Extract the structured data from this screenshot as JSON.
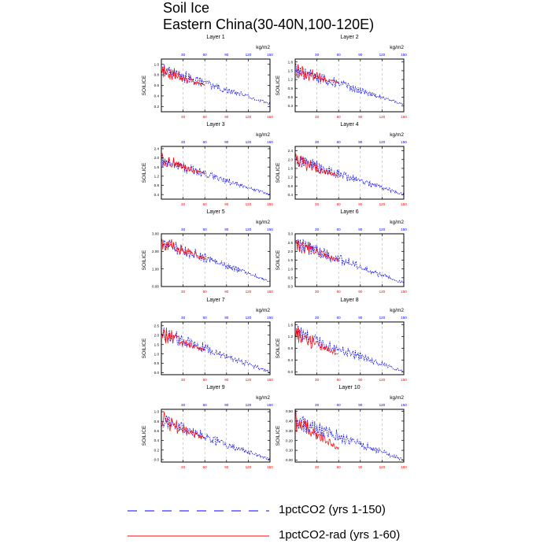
{
  "figure": {
    "title": "Soil Ice",
    "subtitle": "Eastern China(30-40N,100-120E)"
  },
  "legend": [
    {
      "label": "1pctCO2 (yrs 1-150)",
      "color": "#0000ff",
      "style": "dashed"
    },
    {
      "label": "1pctCO2-rad (yrs 1-60)",
      "color": "#ff0000",
      "style": "solid"
    }
  ],
  "chart_data": [
    {
      "type": "line",
      "title": "Layer 1",
      "ylabel": "SOILICE",
      "units": "kg/m2",
      "xlim": [
        0,
        150
      ],
      "ylim": [
        0.1,
        1.1
      ],
      "yticks": [
        0.2,
        0.4,
        0.6,
        0.8,
        1.0
      ],
      "yticklabels": [
        "0.2",
        "0.4",
        "0.6",
        "0.8",
        "1.0"
      ],
      "xticks": [
        30,
        60,
        90,
        120,
        150
      ],
      "grid": "vertical dashed at x ticks",
      "series": [
        {
          "name": "1pctCO2 (yrs 1-150)",
          "color": "#0000ff",
          "x_range": [
            1,
            150
          ],
          "y_start": 0.9,
          "y_end": 0.25,
          "amplitude": 0.12
        },
        {
          "name": "1pctCO2-rad (yrs 1-60)",
          "color": "#ff0000",
          "x_range": [
            1,
            60
          ],
          "y_start": 0.9,
          "y_end": 0.6,
          "amplitude": 0.15
        }
      ]
    },
    {
      "type": "line",
      "title": "Layer 2",
      "ylabel": "SOILICE",
      "units": "kg/m2",
      "xlim": [
        0,
        150
      ],
      "ylim": [
        0.1,
        1.9
      ],
      "yticks": [
        0.3,
        0.6,
        0.9,
        1.2,
        1.5,
        1.8
      ],
      "yticklabels": [
        "0.3",
        "0.6",
        "0.9",
        "1.2",
        "1.5",
        "1.8"
      ],
      "xticks": [
        30,
        60,
        90,
        120,
        150
      ],
      "grid": "vertical dashed at x ticks",
      "series": [
        {
          "name": "1pctCO2 (yrs 1-150)",
          "color": "#0000ff",
          "x_range": [
            1,
            150
          ],
          "y_start": 1.5,
          "y_end": 0.35,
          "amplitude": 0.2
        },
        {
          "name": "1pctCO2-rad (yrs 1-60)",
          "color": "#ff0000",
          "x_range": [
            1,
            60
          ],
          "y_start": 1.5,
          "y_end": 1.1,
          "amplitude": 0.25
        }
      ]
    },
    {
      "type": "line",
      "title": "Layer 3",
      "ylabel": "SOILICE",
      "units": "kg/m2",
      "xlim": [
        0,
        150
      ],
      "ylim": [
        0.2,
        2.5
      ],
      "yticks": [
        0.4,
        0.8,
        1.2,
        1.6,
        2.0,
        2.4
      ],
      "yticklabels": [
        "0.4",
        "0.8",
        "1.2",
        "1.6",
        "2.0",
        "2.4"
      ],
      "xticks": [
        30,
        60,
        90,
        120,
        150
      ],
      "grid": "vertical dashed at x ticks",
      "series": [
        {
          "name": "1pctCO2 (yrs 1-150)",
          "color": "#0000ff",
          "x_range": [
            1,
            150
          ],
          "y_start": 1.9,
          "y_end": 0.4,
          "amplitude": 0.25
        },
        {
          "name": "1pctCO2-rad (yrs 1-60)",
          "color": "#ff0000",
          "x_range": [
            1,
            60
          ],
          "y_start": 1.9,
          "y_end": 1.3,
          "amplitude": 0.3
        }
      ]
    },
    {
      "type": "line",
      "title": "Layer 4",
      "ylabel": "SOILICE",
      "units": "kg/m2",
      "xlim": [
        0,
        150
      ],
      "ylim": [
        0.2,
        2.6
      ],
      "yticks": [
        0.4,
        0.8,
        1.2,
        1.6,
        2.0,
        2.4
      ],
      "yticklabels": [
        "0.4",
        "0.8",
        "1.2",
        "1.6",
        "2.0",
        "2.4"
      ],
      "xticks": [
        30,
        60,
        90,
        120,
        150
      ],
      "grid": "vertical dashed at x ticks",
      "series": [
        {
          "name": "1pctCO2 (yrs 1-150)",
          "color": "#0000ff",
          "x_range": [
            1,
            150
          ],
          "y_start": 2.0,
          "y_end": 0.4,
          "amplitude": 0.3
        },
        {
          "name": "1pctCO2-rad (yrs 1-60)",
          "color": "#ff0000",
          "x_range": [
            1,
            60
          ],
          "y_start": 2.0,
          "y_end": 1.2,
          "amplitude": 0.35
        }
      ]
    },
    {
      "type": "line",
      "title": "Layer 5",
      "ylabel": "SOILICE",
      "units": "kg/m2",
      "xlim": [
        0,
        150
      ],
      "ylim": [
        0,
        3.0
      ],
      "yticks": [
        0,
        1.0,
        2.0,
        3.0
      ],
      "yticklabels": [
        "0.00",
        "1.00",
        "2.00",
        "3.00"
      ],
      "xticks": [
        30,
        60,
        90,
        120,
        150
      ],
      "grid": "vertical dashed at x ticks",
      "series": [
        {
          "name": "1pctCO2 (yrs 1-150)",
          "color": "#0000ff",
          "x_range": [
            1,
            150
          ],
          "y_start": 2.5,
          "y_end": 0.3,
          "amplitude": 0.35
        },
        {
          "name": "1pctCO2-rad (yrs 1-60)",
          "color": "#ff0000",
          "x_range": [
            1,
            60
          ],
          "y_start": 2.5,
          "y_end": 1.6,
          "amplitude": 0.4
        }
      ]
    },
    {
      "type": "line",
      "title": "Layer 6",
      "ylabel": "SOILICE",
      "units": "kg/m2",
      "xlim": [
        0,
        150
      ],
      "ylim": [
        0,
        3.0
      ],
      "yticks": [
        0,
        0.5,
        1.0,
        1.5,
        2.0,
        2.5,
        3.0
      ],
      "yticklabels": [
        "0.0",
        "0.5",
        "1.0",
        "1.5",
        "2.0",
        "2.5",
        "3.0"
      ],
      "xticks": [
        30,
        60,
        90,
        120,
        150
      ],
      "grid": "vertical dashed at x ticks",
      "series": [
        {
          "name": "1pctCO2 (yrs 1-150)",
          "color": "#0000ff",
          "x_range": [
            1,
            150
          ],
          "y_start": 2.5,
          "y_end": 0.2,
          "amplitude": 0.4
        },
        {
          "name": "1pctCO2-rad (yrs 1-60)",
          "color": "#ff0000",
          "x_range": [
            1,
            60
          ],
          "y_start": 2.5,
          "y_end": 1.5,
          "amplitude": 0.45
        }
      ]
    },
    {
      "type": "line",
      "title": "Layer 7",
      "ylabel": "SOILICE",
      "units": "kg/m2",
      "xlim": [
        0,
        150
      ],
      "ylim": [
        -0.1,
        2.7
      ],
      "yticks": [
        0,
        0.5,
        1.0,
        1.5,
        2.0,
        2.5
      ],
      "yticklabels": [
        "0.0",
        "0.5",
        "1.0",
        "1.5",
        "2.0",
        "2.5"
      ],
      "xticks": [
        30,
        60,
        90,
        120,
        150
      ],
      "grid": "vertical dashed at x ticks",
      "series": [
        {
          "name": "1pctCO2 (yrs 1-150)",
          "color": "#0000ff",
          "x_range": [
            1,
            150
          ],
          "y_start": 2.1,
          "y_end": 0.05,
          "amplitude": 0.35
        },
        {
          "name": "1pctCO2-rad (yrs 1-60)",
          "color": "#ff0000",
          "x_range": [
            1,
            60
          ],
          "y_start": 2.1,
          "y_end": 1.2,
          "amplitude": 0.4
        }
      ]
    },
    {
      "type": "line",
      "title": "Layer 8",
      "ylabel": "SOILICE",
      "units": "kg/m2",
      "xlim": [
        0,
        150
      ],
      "ylim": [
        -0.1,
        1.7
      ],
      "yticks": [
        0,
        0.4,
        0.8,
        1.2,
        1.6
      ],
      "yticklabels": [
        "0.0",
        "0.4",
        "0.8",
        "1.2",
        "1.6"
      ],
      "xticks": [
        30,
        60,
        90,
        120,
        150
      ],
      "grid": "vertical dashed at x ticks",
      "series": [
        {
          "name": "1pctCO2 (yrs 1-150)",
          "color": "#0000ff",
          "x_range": [
            1,
            150
          ],
          "y_start": 1.3,
          "y_end": 0.0,
          "amplitude": 0.25
        },
        {
          "name": "1pctCO2-rad (yrs 1-60)",
          "color": "#ff0000",
          "x_range": [
            1,
            60
          ],
          "y_start": 1.3,
          "y_end": 0.6,
          "amplitude": 0.3
        }
      ]
    },
    {
      "type": "line",
      "title": "Layer 9",
      "ylabel": "SOILICE",
      "units": "kg/m2",
      "xlim": [
        0,
        150
      ],
      "ylim": [
        -0.05,
        1.05
      ],
      "yticks": [
        0,
        0.2,
        0.4,
        0.6,
        0.8,
        1.0
      ],
      "yticklabels": [
        "0.0",
        "0.2",
        "0.4",
        "0.6",
        "0.8",
        "1.0"
      ],
      "xticks": [
        30,
        60,
        90,
        120,
        150
      ],
      "grid": "vertical dashed at x ticks",
      "series": [
        {
          "name": "1pctCO2 (yrs 1-150)",
          "color": "#0000ff",
          "x_range": [
            1,
            150
          ],
          "y_start": 0.8,
          "y_end": 0.0,
          "amplitude": 0.15
        },
        {
          "name": "1pctCO2-rad (yrs 1-60)",
          "color": "#ff0000",
          "x_range": [
            1,
            60
          ],
          "y_start": 0.8,
          "y_end": 0.45,
          "amplitude": 0.18
        }
      ]
    },
    {
      "type": "line",
      "title": "Layer 10",
      "ylabel": "SOILICE",
      "units": "kg/m2",
      "xlim": [
        0,
        150
      ],
      "ylim": [
        -0.02,
        0.52
      ],
      "yticks": [
        0,
        0.1,
        0.2,
        0.3,
        0.4,
        0.5
      ],
      "yticklabels": [
        "0.00",
        "0.10",
        "0.20",
        "0.30",
        "0.40",
        "0.50"
      ],
      "xticks": [
        30,
        60,
        90,
        120,
        150
      ],
      "grid": "vertical dashed at x ticks",
      "series": [
        {
          "name": "1pctCO2 (yrs 1-150)",
          "color": "#0000ff",
          "x_range": [
            1,
            150
          ],
          "y_start": 0.4,
          "y_end": 0.0,
          "amplitude": 0.08
        },
        {
          "name": "1pctCO2-rad (yrs 1-60)",
          "color": "#ff0000",
          "x_range": [
            1,
            60
          ],
          "y_start": 0.4,
          "y_end": 0.12,
          "amplitude": 0.1
        }
      ]
    }
  ]
}
